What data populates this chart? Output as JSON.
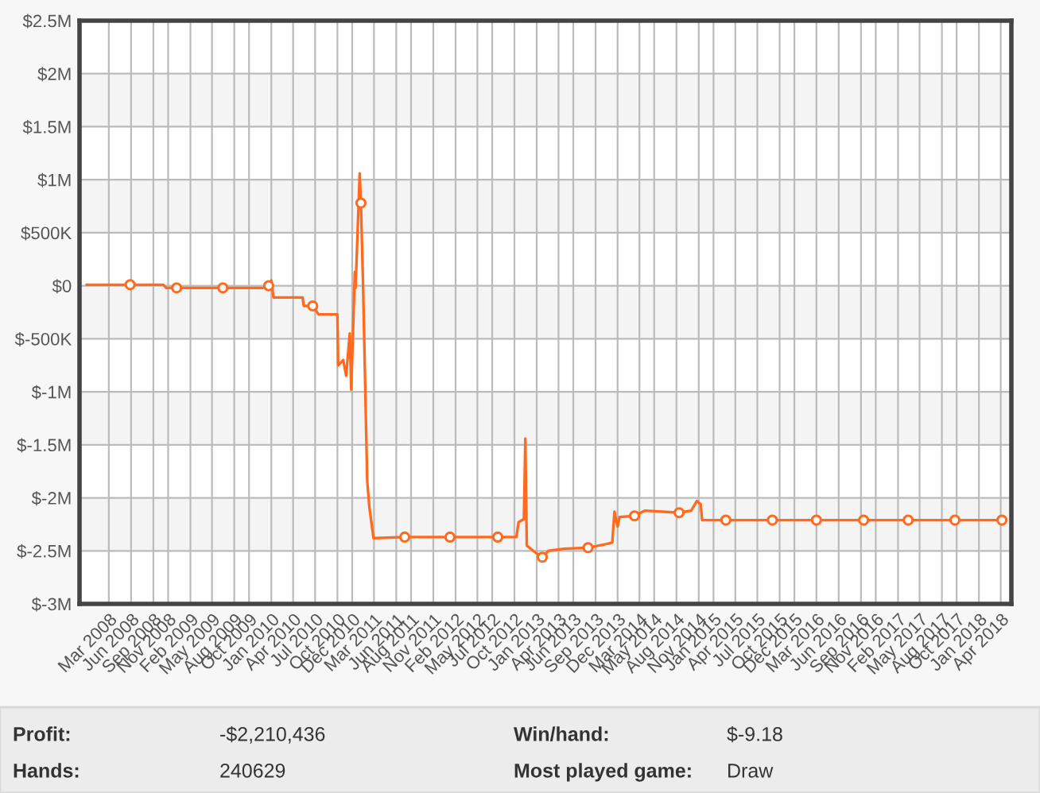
{
  "chart_data": {
    "type": "line",
    "xlim": [
      "2007-11-01",
      "2018-05-15"
    ],
    "xticks": [
      {
        "value": "2008-03-01",
        "label": "Mar 2008"
      },
      {
        "value": "2008-06-01",
        "label": "Jun 2008"
      },
      {
        "value": "2008-09-01",
        "label": "Sep 2008"
      },
      {
        "value": "2008-11-01",
        "label": "Nov 2008"
      },
      {
        "value": "2009-02-01",
        "label": "Feb 2009"
      },
      {
        "value": "2009-05-01",
        "label": "May 2009"
      },
      {
        "value": "2009-08-01",
        "label": "Aug 2009"
      },
      {
        "value": "2009-10-01",
        "label": "Oct 2009"
      },
      {
        "value": "2010-01-01",
        "label": "Jan 2010"
      },
      {
        "value": "2010-04-01",
        "label": "Apr 2010"
      },
      {
        "value": "2010-07-01",
        "label": "Jul 2010"
      },
      {
        "value": "2010-10-01",
        "label": "Oct 2010"
      },
      {
        "value": "2010-12-01",
        "label": "Dec 2010"
      },
      {
        "value": "2011-03-01",
        "label": "Mar 2011"
      },
      {
        "value": "2011-06-01",
        "label": "Jun 2011"
      },
      {
        "value": "2011-08-01",
        "label": "Aug 2011"
      },
      {
        "value": "2011-11-01",
        "label": "Nov 2011"
      },
      {
        "value": "2012-02-01",
        "label": "Feb 2012"
      },
      {
        "value": "2012-05-01",
        "label": "May 2012"
      },
      {
        "value": "2012-07-01",
        "label": "Jul 2012"
      },
      {
        "value": "2012-10-01",
        "label": "Oct 2012"
      },
      {
        "value": "2013-01-01",
        "label": "Jan 2013"
      },
      {
        "value": "2013-04-01",
        "label": "Apr 2013"
      },
      {
        "value": "2013-06-01",
        "label": "Jun 2013"
      },
      {
        "value": "2013-09-01",
        "label": "Sep 2013"
      },
      {
        "value": "2013-12-01",
        "label": "Dec 2013"
      },
      {
        "value": "2014-03-01",
        "label": "Mar 2014"
      },
      {
        "value": "2014-05-01",
        "label": "May 2014"
      },
      {
        "value": "2014-08-01",
        "label": "Aug 2014"
      },
      {
        "value": "2014-11-01",
        "label": "Nov 2014"
      },
      {
        "value": "2015-01-01",
        "label": "Jan 2015"
      },
      {
        "value": "2015-04-01",
        "label": "Apr 2015"
      },
      {
        "value": "2015-07-01",
        "label": "Jul 2015"
      },
      {
        "value": "2015-10-01",
        "label": "Oct 2015"
      },
      {
        "value": "2015-12-01",
        "label": "Dec 2015"
      },
      {
        "value": "2016-03-01",
        "label": "Mar 2016"
      },
      {
        "value": "2016-06-01",
        "label": "Jun 2016"
      },
      {
        "value": "2016-09-01",
        "label": "Sep 2016"
      },
      {
        "value": "2016-11-01",
        "label": "Nov 2016"
      },
      {
        "value": "2017-02-01",
        "label": "Feb 2017"
      },
      {
        "value": "2017-05-01",
        "label": "May 2017"
      },
      {
        "value": "2017-08-01",
        "label": "Aug 2017"
      },
      {
        "value": "2017-10-01",
        "label": "Oct 2017"
      },
      {
        "value": "2018-01-01",
        "label": "Jan 2018"
      },
      {
        "value": "2018-04-01",
        "label": "Apr 2018"
      }
    ],
    "ylim": [
      -3000000,
      2500000
    ],
    "yticks": [
      {
        "value": -3000000,
        "label": "$-3M"
      },
      {
        "value": -2500000,
        "label": "$-2.5M"
      },
      {
        "value": -2000000,
        "label": "$-2M"
      },
      {
        "value": -1500000,
        "label": "$-1.5M"
      },
      {
        "value": -1000000,
        "label": "$-1M"
      },
      {
        "value": -500000,
        "label": "$-500K"
      },
      {
        "value": 0,
        "label": "$0"
      },
      {
        "value": 500000,
        "label": "$500K"
      },
      {
        "value": 1000000,
        "label": "$1M"
      },
      {
        "value": 1500000,
        "label": "$1.5M"
      },
      {
        "value": 2000000,
        "label": "$2M"
      },
      {
        "value": 2500000,
        "label": "$2.5M"
      }
    ],
    "grid": true,
    "bands": [
      {
        "axis": "y",
        "from": -2500000,
        "to": -2000000,
        "color": "#f4f4f4"
      },
      {
        "axis": "y",
        "from": -1500000,
        "to": -1000000,
        "color": "#f4f4f4"
      },
      {
        "axis": "y",
        "from": -500000,
        "to": 0,
        "color": "#f4f4f4"
      },
      {
        "axis": "y",
        "from": 500000,
        "to": 1000000,
        "color": "#f4f4f4"
      },
      {
        "axis": "y",
        "from": 1500000,
        "to": 2000000,
        "color": "#f4f4f4"
      }
    ],
    "series": [
      {
        "color": "#ff6a1f",
        "marker": "none",
        "x": [
          "2007-12-01",
          "2008-05-28",
          "2008-10-12",
          "2008-10-24",
          "2008-12-06",
          "2009-06-15",
          "2009-11-28",
          "2009-12-21",
          "2010-01-01",
          "2010-01-10",
          "2010-05-10",
          "2010-05-15",
          "2010-06-21",
          "2010-07-15",
          "2010-10-01",
          "2010-10-04",
          "2010-10-25",
          "2010-11-06",
          "2010-11-21",
          "2010-11-27",
          "2010-12-12",
          "2010-12-15",
          "2011-01-01",
          "2011-01-06",
          "2011-01-15",
          "2011-02-01",
          "2011-02-10",
          "2011-02-27",
          "2011-07-06",
          "2012-01-09",
          "2012-07-24",
          "2012-10-09",
          "2012-10-18",
          "2012-11-09",
          "2012-11-15",
          "2012-11-21",
          "2012-12-18",
          "2013-01-24",
          "2013-02-18",
          "2013-04-24",
          "2013-08-01",
          "2013-10-27",
          "2013-11-09",
          "2013-11-18",
          "2013-12-01",
          "2013-12-09",
          "2014-02-09",
          "2014-03-24",
          "2014-08-12",
          "2014-10-01",
          "2014-10-24",
          "2014-11-09",
          "2014-11-15",
          "2015-02-21",
          "2015-09-01",
          "2016-03-01",
          "2016-09-12",
          "2017-03-15",
          "2017-09-24",
          "2018-04-06"
        ],
        "values": [
          10000,
          10000,
          10000,
          -20000,
          -20000,
          -20000,
          -20000,
          0,
          50000,
          -110000,
          -110000,
          -190000,
          -190000,
          -270000,
          -270000,
          -750000,
          -700000,
          -850000,
          -450000,
          -980000,
          130000,
          -20000,
          1060000,
          780000,
          0,
          -1840000,
          -2090000,
          -2380000,
          -2370000,
          -2370000,
          -2370000,
          -2370000,
          -2230000,
          -2200000,
          -1440000,
          -2450000,
          -2500000,
          -2560000,
          -2500000,
          -2480000,
          -2470000,
          -2430000,
          -2420000,
          -2130000,
          -2270000,
          -2180000,
          -2170000,
          -2120000,
          -2140000,
          -2120000,
          -2030000,
          -2060000,
          -2210000,
          -2210000,
          -2210000,
          -2210000,
          -2210000,
          -2210000,
          -2210000,
          -2210000
        ]
      },
      {
        "type": "scatter",
        "color": "#ff6a1f",
        "marker": "circle",
        "x": [
          "2008-05-28",
          "2008-12-06",
          "2009-06-15",
          "2009-12-21",
          "2010-06-21",
          "2011-01-06",
          "2011-07-06",
          "2012-01-09",
          "2012-07-24",
          "2013-01-24",
          "2013-08-01",
          "2014-02-09",
          "2014-08-12",
          "2015-02-21",
          "2015-09-01",
          "2016-03-01",
          "2016-09-12",
          "2017-03-15",
          "2017-09-24",
          "2018-04-06"
        ],
        "values": [
          10000,
          -20000,
          -20000,
          0,
          -190000,
          780000,
          -2370000,
          -2370000,
          -2370000,
          -2560000,
          -2470000,
          -2170000,
          -2140000,
          -2210000,
          -2210000,
          -2210000,
          -2210000,
          -2210000,
          -2210000,
          -2210000
        ]
      }
    ],
    "annotations": [
      "Profit:",
      "-$2,210,436",
      "Win/hand:",
      "$-9.18",
      "Hands:",
      "240629",
      "Most played game:",
      "Draw"
    ]
  }
}
